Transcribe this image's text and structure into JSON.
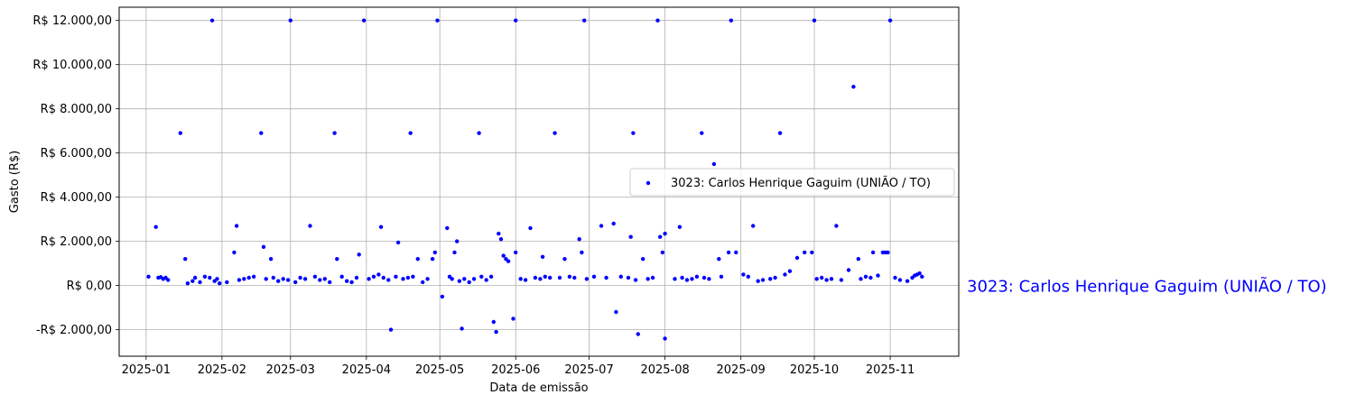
{
  "chart_data": {
    "type": "scatter",
    "xlabel": "Data de emissão",
    "ylabel": "Gasto (R$)",
    "xlim": [
      "2024-12-21",
      "2025-11-29"
    ],
    "ylim": [
      -3200,
      12600
    ],
    "grid": true,
    "legend_position": "center-right",
    "point_color": "#0000ff",
    "x_ticks": [
      {
        "date": "2025-01-01",
        "label": "2025-01"
      },
      {
        "date": "2025-02-01",
        "label": "2025-02"
      },
      {
        "date": "2025-03-01",
        "label": "2025-03"
      },
      {
        "date": "2025-04-01",
        "label": "2025-04"
      },
      {
        "date": "2025-05-01",
        "label": "2025-05"
      },
      {
        "date": "2025-06-01",
        "label": "2025-06"
      },
      {
        "date": "2025-07-01",
        "label": "2025-07"
      },
      {
        "date": "2025-08-01",
        "label": "2025-08"
      },
      {
        "date": "2025-09-01",
        "label": "2025-09"
      },
      {
        "date": "2025-10-01",
        "label": "2025-10"
      },
      {
        "date": "2025-11-01",
        "label": "2025-11"
      }
    ],
    "y_ticks": [
      {
        "value": -2000,
        "label": "-R$ 2.000,00"
      },
      {
        "value": 0,
        "label": "R$ 0,00"
      },
      {
        "value": 2000,
        "label": "R$ 2.000,00"
      },
      {
        "value": 4000,
        "label": "R$ 4.000,00"
      },
      {
        "value": 6000,
        "label": "R$ 6.000,00"
      },
      {
        "value": 8000,
        "label": "R$ 8.000,00"
      },
      {
        "value": 10000,
        "label": "R$ 10.000,00"
      },
      {
        "value": 12000,
        "label": "R$ 12.000,00"
      }
    ],
    "series": [
      {
        "name": "3023: Carlos Henrique Gaguim (UNIÃO / TO)",
        "points": [
          [
            "2025-01-02",
            400
          ],
          [
            "2025-01-05",
            2650
          ],
          [
            "2025-01-06",
            350
          ],
          [
            "2025-01-07",
            380
          ],
          [
            "2025-01-08",
            300
          ],
          [
            "2025-01-09",
            350
          ],
          [
            "2025-01-10",
            250
          ],
          [
            "2025-01-15",
            6900
          ],
          [
            "2025-01-17",
            1200
          ],
          [
            "2025-01-18",
            100
          ],
          [
            "2025-01-20",
            200
          ],
          [
            "2025-01-21",
            350
          ],
          [
            "2025-01-23",
            150
          ],
          [
            "2025-01-25",
            400
          ],
          [
            "2025-01-27",
            350
          ],
          [
            "2025-01-28",
            12000
          ],
          [
            "2025-01-29",
            200
          ],
          [
            "2025-01-30",
            300
          ],
          [
            "2025-01-31",
            100
          ],
          [
            "2025-02-03",
            150
          ],
          [
            "2025-02-06",
            1500
          ],
          [
            "2025-02-07",
            2700
          ],
          [
            "2025-02-08",
            250
          ],
          [
            "2025-02-10",
            300
          ],
          [
            "2025-02-12",
            350
          ],
          [
            "2025-02-14",
            400
          ],
          [
            "2025-02-17",
            6900
          ],
          [
            "2025-02-18",
            1750
          ],
          [
            "2025-02-19",
            300
          ],
          [
            "2025-02-21",
            1200
          ],
          [
            "2025-02-22",
            350
          ],
          [
            "2025-02-24",
            200
          ],
          [
            "2025-02-26",
            300
          ],
          [
            "2025-02-28",
            250
          ],
          [
            "2025-03-01",
            12000
          ],
          [
            "2025-03-03",
            150
          ],
          [
            "2025-03-05",
            350
          ],
          [
            "2025-03-07",
            300
          ],
          [
            "2025-03-09",
            2700
          ],
          [
            "2025-03-11",
            400
          ],
          [
            "2025-03-13",
            250
          ],
          [
            "2025-03-15",
            300
          ],
          [
            "2025-03-17",
            150
          ],
          [
            "2025-03-19",
            6900
          ],
          [
            "2025-03-20",
            1200
          ],
          [
            "2025-03-22",
            400
          ],
          [
            "2025-03-24",
            200
          ],
          [
            "2025-03-26",
            150
          ],
          [
            "2025-03-28",
            350
          ],
          [
            "2025-03-29",
            1400
          ],
          [
            "2025-03-31",
            12000
          ],
          [
            "2025-04-02",
            300
          ],
          [
            "2025-04-04",
            400
          ],
          [
            "2025-04-06",
            500
          ],
          [
            "2025-04-07",
            2650
          ],
          [
            "2025-04-08",
            350
          ],
          [
            "2025-04-10",
            250
          ],
          [
            "2025-04-11",
            -2000
          ],
          [
            "2025-04-13",
            400
          ],
          [
            "2025-04-14",
            1950
          ],
          [
            "2025-04-16",
            300
          ],
          [
            "2025-04-18",
            350
          ],
          [
            "2025-04-19",
            6900
          ],
          [
            "2025-04-20",
            400
          ],
          [
            "2025-04-22",
            1200
          ],
          [
            "2025-04-24",
            150
          ],
          [
            "2025-04-26",
            300
          ],
          [
            "2025-04-28",
            1200
          ],
          [
            "2025-04-29",
            1500
          ],
          [
            "2025-04-30",
            12000
          ],
          [
            "2025-05-02",
            -500
          ],
          [
            "2025-05-04",
            2600
          ],
          [
            "2025-05-05",
            400
          ],
          [
            "2025-05-06",
            300
          ],
          [
            "2025-05-07",
            1500
          ],
          [
            "2025-05-08",
            2000
          ],
          [
            "2025-05-09",
            200
          ],
          [
            "2025-05-10",
            -1950
          ],
          [
            "2025-05-11",
            300
          ],
          [
            "2025-05-13",
            150
          ],
          [
            "2025-05-15",
            300
          ],
          [
            "2025-05-17",
            6900
          ],
          [
            "2025-05-18",
            400
          ],
          [
            "2025-05-20",
            250
          ],
          [
            "2025-05-22",
            400
          ],
          [
            "2025-05-23",
            -1650
          ],
          [
            "2025-05-24",
            -2100
          ],
          [
            "2025-05-25",
            2350
          ],
          [
            "2025-05-26",
            2100
          ],
          [
            "2025-05-27",
            1350
          ],
          [
            "2025-05-28",
            1200
          ],
          [
            "2025-05-29",
            1100
          ],
          [
            "2025-05-31",
            -1500
          ],
          [
            "2025-06-01",
            1500
          ],
          [
            "2025-06-01",
            12000
          ],
          [
            "2025-06-03",
            300
          ],
          [
            "2025-06-05",
            250
          ],
          [
            "2025-06-07",
            2600
          ],
          [
            "2025-06-09",
            350
          ],
          [
            "2025-06-11",
            300
          ],
          [
            "2025-06-12",
            1300
          ],
          [
            "2025-06-13",
            400
          ],
          [
            "2025-06-15",
            350
          ],
          [
            "2025-06-17",
            6900
          ],
          [
            "2025-06-19",
            350
          ],
          [
            "2025-06-21",
            1200
          ],
          [
            "2025-06-23",
            400
          ],
          [
            "2025-06-25",
            350
          ],
          [
            "2025-06-27",
            2100
          ],
          [
            "2025-06-28",
            1500
          ],
          [
            "2025-06-29",
            12000
          ],
          [
            "2025-06-30",
            300
          ],
          [
            "2025-07-03",
            400
          ],
          [
            "2025-07-06",
            2700
          ],
          [
            "2025-07-08",
            350
          ],
          [
            "2025-07-11",
            2800
          ],
          [
            "2025-07-12",
            -1200
          ],
          [
            "2025-07-14",
            400
          ],
          [
            "2025-07-17",
            350
          ],
          [
            "2025-07-18",
            2200
          ],
          [
            "2025-07-19",
            6900
          ],
          [
            "2025-07-20",
            250
          ],
          [
            "2025-07-21",
            -2200
          ],
          [
            "2025-07-23",
            1200
          ],
          [
            "2025-07-25",
            300
          ],
          [
            "2025-07-27",
            350
          ],
          [
            "2025-07-29",
            12000
          ],
          [
            "2025-07-30",
            2200
          ],
          [
            "2025-07-31",
            1500
          ],
          [
            "2025-08-01",
            2350
          ],
          [
            "2025-08-01",
            -2400
          ],
          [
            "2025-08-05",
            300
          ],
          [
            "2025-08-07",
            2650
          ],
          [
            "2025-08-08",
            350
          ],
          [
            "2025-08-10",
            250
          ],
          [
            "2025-08-12",
            300
          ],
          [
            "2025-08-14",
            400
          ],
          [
            "2025-08-16",
            6900
          ],
          [
            "2025-08-17",
            350
          ],
          [
            "2025-08-19",
            300
          ],
          [
            "2025-08-21",
            5500
          ],
          [
            "2025-08-23",
            1200
          ],
          [
            "2025-08-24",
            400
          ],
          [
            "2025-08-27",
            1500
          ],
          [
            "2025-08-28",
            12000
          ],
          [
            "2025-08-30",
            1500
          ],
          [
            "2025-09-02",
            500
          ],
          [
            "2025-09-04",
            400
          ],
          [
            "2025-09-06",
            2700
          ],
          [
            "2025-09-08",
            200
          ],
          [
            "2025-09-10",
            250
          ],
          [
            "2025-09-13",
            300
          ],
          [
            "2025-09-15",
            350
          ],
          [
            "2025-09-17",
            6900
          ],
          [
            "2025-09-19",
            500
          ],
          [
            "2025-09-21",
            650
          ],
          [
            "2025-09-24",
            1250
          ],
          [
            "2025-09-27",
            1500
          ],
          [
            "2025-09-30",
            1500
          ],
          [
            "2025-10-01",
            12000
          ],
          [
            "2025-10-02",
            300
          ],
          [
            "2025-10-04",
            350
          ],
          [
            "2025-10-06",
            250
          ],
          [
            "2025-10-08",
            300
          ],
          [
            "2025-10-10",
            2700
          ],
          [
            "2025-10-12",
            250
          ],
          [
            "2025-10-15",
            700
          ],
          [
            "2025-10-17",
            9000
          ],
          [
            "2025-10-19",
            1200
          ],
          [
            "2025-10-20",
            300
          ],
          [
            "2025-10-22",
            400
          ],
          [
            "2025-10-24",
            350
          ],
          [
            "2025-10-25",
            1500
          ],
          [
            "2025-10-27",
            450
          ],
          [
            "2025-10-29",
            1500
          ],
          [
            "2025-10-30",
            1500
          ],
          [
            "2025-10-31",
            1500
          ],
          [
            "2025-11-01",
            12000
          ],
          [
            "2025-11-03",
            350
          ],
          [
            "2025-11-05",
            250
          ],
          [
            "2025-11-08",
            200
          ],
          [
            "2025-11-10",
            350
          ],
          [
            "2025-11-11",
            450
          ],
          [
            "2025-11-12",
            500
          ],
          [
            "2025-11-13",
            550
          ],
          [
            "2025-11-14",
            400
          ]
        ]
      }
    ],
    "side_label": "3023: Carlos Henrique Gaguim (UNIÃO / TO)"
  }
}
